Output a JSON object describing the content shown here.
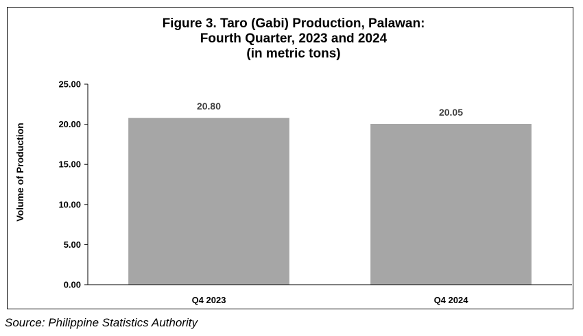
{
  "chart_data": {
    "type": "bar",
    "title_lines": [
      "Figure 3. Taro (Gabi) Production, Palawan:",
      "Fourth Quarter, 2023 and 2024",
      "(in metric tons)"
    ],
    "categories": [
      "Q4 2023",
      "Q4 2024"
    ],
    "values": [
      20.8,
      20.05
    ],
    "data_labels": [
      "20.80",
      "20.05"
    ],
    "xlabel": "",
    "ylabel": "Volume of Production",
    "ylim": [
      0,
      25
    ],
    "yticks": [
      0,
      5,
      10,
      15,
      20,
      25
    ],
    "ytick_labels": [
      "0.00",
      "5.00",
      "10.00",
      "15.00",
      "20.00",
      "25.00"
    ],
    "grid": false,
    "legend": "none",
    "bar_color": "#a6a6a6"
  },
  "source": "Source: Philippine Statistics Authority"
}
